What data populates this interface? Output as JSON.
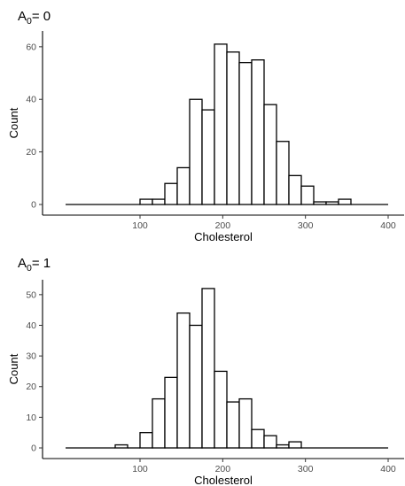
{
  "chart_data": [
    {
      "type": "bar",
      "title": {
        "main": "A",
        "sub": "0",
        "rest": "= 0"
      },
      "xlabel": "Cholesterol",
      "ylabel": "Count",
      "xlim": [
        0,
        410
      ],
      "ylim": [
        0,
        65
      ],
      "xticks": [
        100,
        200,
        300,
        400
      ],
      "yticks": [
        0,
        20,
        40,
        60
      ],
      "bins": [
        {
          "start": 10,
          "end": 100,
          "count": 0
        },
        {
          "start": 100,
          "end": 115,
          "count": 2
        },
        {
          "start": 115,
          "end": 130,
          "count": 2
        },
        {
          "start": 130,
          "end": 145,
          "count": 8
        },
        {
          "start": 145,
          "end": 160,
          "count": 14
        },
        {
          "start": 160,
          "end": 175,
          "count": 40
        },
        {
          "start": 175,
          "end": 190,
          "count": 36
        },
        {
          "start": 190,
          "end": 205,
          "count": 61
        },
        {
          "start": 205,
          "end": 220,
          "count": 58
        },
        {
          "start": 220,
          "end": 235,
          "count": 54
        },
        {
          "start": 235,
          "end": 250,
          "count": 55
        },
        {
          "start": 250,
          "end": 265,
          "count": 38
        },
        {
          "start": 265,
          "end": 280,
          "count": 24
        },
        {
          "start": 280,
          "end": 295,
          "count": 11
        },
        {
          "start": 295,
          "end": 310,
          "count": 7
        },
        {
          "start": 310,
          "end": 325,
          "count": 1
        },
        {
          "start": 325,
          "end": 340,
          "count": 1
        },
        {
          "start": 340,
          "end": 355,
          "count": 2
        },
        {
          "start": 355,
          "end": 400,
          "count": 0
        }
      ]
    },
    {
      "type": "bar",
      "title": {
        "main": "A",
        "sub": "0",
        "rest": "= 1"
      },
      "xlabel": "Cholesterol",
      "ylabel": "Count",
      "xlim": [
        0,
        410
      ],
      "ylim": [
        0,
        54
      ],
      "xticks": [
        100,
        200,
        300,
        400
      ],
      "yticks": [
        0,
        10,
        20,
        30,
        40,
        50
      ],
      "bins": [
        {
          "start": 10,
          "end": 70,
          "count": 0
        },
        {
          "start": 70,
          "end": 85,
          "count": 1
        },
        {
          "start": 85,
          "end": 100,
          "count": 0
        },
        {
          "start": 100,
          "end": 115,
          "count": 5
        },
        {
          "start": 115,
          "end": 130,
          "count": 16
        },
        {
          "start": 130,
          "end": 145,
          "count": 23
        },
        {
          "start": 145,
          "end": 160,
          "count": 44
        },
        {
          "start": 160,
          "end": 175,
          "count": 40
        },
        {
          "start": 175,
          "end": 190,
          "count": 52
        },
        {
          "start": 190,
          "end": 205,
          "count": 25
        },
        {
          "start": 205,
          "end": 220,
          "count": 15
        },
        {
          "start": 220,
          "end": 235,
          "count": 16
        },
        {
          "start": 235,
          "end": 250,
          "count": 6
        },
        {
          "start": 250,
          "end": 265,
          "count": 4
        },
        {
          "start": 265,
          "end": 280,
          "count": 1
        },
        {
          "start": 280,
          "end": 295,
          "count": 2
        },
        {
          "start": 295,
          "end": 400,
          "count": 0
        }
      ]
    }
  ]
}
